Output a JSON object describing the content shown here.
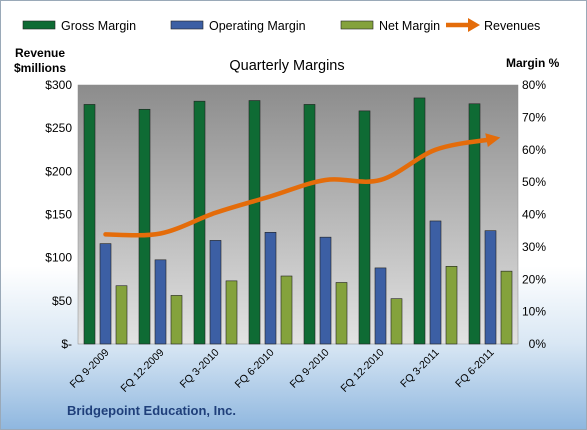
{
  "chart_data": {
    "type": "bar",
    "title": "Quarterly Margins",
    "categories": [
      "FQ 9-2009",
      "FQ 12-2009",
      "FQ 3-2010",
      "FQ 6-2010",
      "FQ 9-2010",
      "FQ 12-2010",
      "FQ 3-2011",
      "FQ 6-2011"
    ],
    "series": [
      {
        "name": "Gross Margin",
        "axis": "right",
        "color": "#0f6b34",
        "values": [
          0.74,
          0.725,
          0.75,
          0.752,
          0.74,
          0.72,
          0.76,
          0.742
        ]
      },
      {
        "name": "Operating Margin",
        "axis": "right",
        "color": "#3c5fa4",
        "values": [
          0.31,
          0.26,
          0.32,
          0.345,
          0.33,
          0.235,
          0.38,
          0.35
        ]
      },
      {
        "name": "Net Margin",
        "axis": "right",
        "color": "#84a23c",
        "values": [
          0.18,
          0.15,
          0.195,
          0.21,
          0.19,
          0.14,
          0.24,
          0.225
        ]
      }
    ],
    "line": {
      "name": "Revenues",
      "axis": "left",
      "color": "#e46c0a",
      "values": [
        127,
        128,
        152,
        171,
        190,
        190,
        225,
        237
      ]
    },
    "y_left": {
      "title_line1": "Revenue",
      "title_line2": "$millions",
      "ylim": [
        0,
        300
      ],
      "ticks": [
        "$-",
        "$50",
        "$100",
        "$150",
        "$200",
        "$250",
        "$300"
      ]
    },
    "y_right": {
      "title": "Margin %",
      "ylim": [
        0,
        0.8
      ],
      "ticks": [
        "0%",
        "10%",
        "20%",
        "30%",
        "40%",
        "50%",
        "60%",
        "70%",
        "80%"
      ]
    },
    "grid": false,
    "legend_position": "top"
  },
  "footer": "Bridgepoint Education, Inc."
}
